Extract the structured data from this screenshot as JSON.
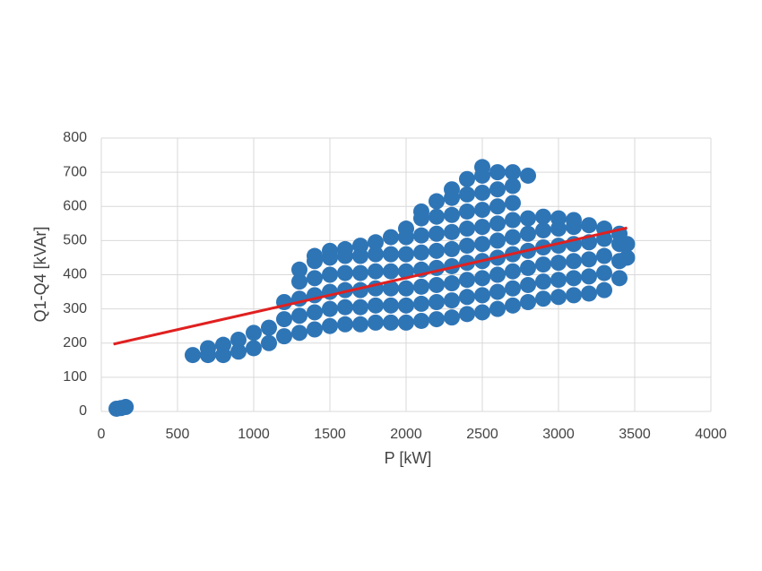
{
  "chart_data": {
    "type": "scatter",
    "xlabel": "P [kW]",
    "ylabel": "Q1-Q4 [kVAr]",
    "xlim": [
      0,
      4000
    ],
    "xticks": [
      0,
      500,
      1000,
      1500,
      2000,
      2500,
      3000,
      3500,
      4000
    ],
    "ylim": [
      0,
      800
    ],
    "yticks": [
      0,
      100,
      200,
      300,
      400,
      500,
      600,
      700,
      800
    ],
    "grid": true,
    "series": [
      {
        "mode": "markers",
        "color": "#2e75b6",
        "x": [
          600,
          700,
          700,
          800,
          800,
          900,
          900,
          1000,
          1000,
          1100,
          1100,
          1200,
          1200,
          1200,
          1300,
          1300,
          1300,
          1300,
          1300,
          1400,
          1400,
          1400,
          1400,
          1400,
          1400,
          1500,
          1500,
          1500,
          1500,
          1500,
          1500,
          1600,
          1600,
          1600,
          1600,
          1600,
          1600,
          1700,
          1700,
          1700,
          1700,
          1700,
          1700,
          1800,
          1800,
          1800,
          1800,
          1800,
          1800,
          1900,
          1900,
          1900,
          1900,
          1900,
          1900,
          2000,
          2000,
          2000,
          2000,
          2000,
          2000,
          2000,
          2100,
          2100,
          2100,
          2100,
          2100,
          2100,
          2100,
          2100,
          2200,
          2200,
          2200,
          2200,
          2200,
          2200,
          2200,
          2200,
          2300,
          2300,
          2300,
          2300,
          2300,
          2300,
          2300,
          2300,
          2300,
          2400,
          2400,
          2400,
          2400,
          2400,
          2400,
          2400,
          2400,
          2400,
          2500,
          2500,
          2500,
          2500,
          2500,
          2500,
          2500,
          2500,
          2500,
          2500,
          2600,
          2600,
          2600,
          2600,
          2600,
          2600,
          2600,
          2600,
          2600,
          2700,
          2700,
          2700,
          2700,
          2700,
          2700,
          2700,
          2700,
          2700,
          2800,
          2800,
          2800,
          2800,
          2800,
          2800,
          2800,
          2900,
          2900,
          2900,
          2900,
          2900,
          2900,
          3000,
          3000,
          3000,
          3000,
          3000,
          3000,
          3100,
          3100,
          3100,
          3100,
          3100,
          3100,
          3200,
          3200,
          3200,
          3200,
          3200,
          3300,
          3300,
          3300,
          3300,
          3300,
          3400,
          3400,
          3400,
          3400,
          3450,
          3450,
          100,
          130,
          160
        ],
        "values": [
          165,
          165,
          185,
          165,
          195,
          175,
          210,
          185,
          230,
          200,
          245,
          220,
          270,
          320,
          230,
          280,
          330,
          380,
          415,
          240,
          290,
          340,
          390,
          440,
          455,
          250,
          300,
          350,
          400,
          450,
          470,
          255,
          305,
          355,
          405,
          455,
          475,
          255,
          305,
          355,
          405,
          455,
          485,
          260,
          310,
          360,
          410,
          460,
          495,
          260,
          310,
          360,
          410,
          460,
          510,
          260,
          310,
          360,
          410,
          460,
          510,
          535,
          265,
          315,
          365,
          415,
          465,
          515,
          565,
          585,
          270,
          320,
          370,
          420,
          470,
          520,
          570,
          615,
          275,
          325,
          375,
          425,
          475,
          525,
          575,
          625,
          650,
          285,
          335,
          385,
          435,
          485,
          535,
          585,
          635,
          680,
          290,
          340,
          390,
          440,
          490,
          540,
          590,
          640,
          690,
          715,
          300,
          350,
          400,
          450,
          500,
          550,
          600,
          650,
          700,
          310,
          360,
          410,
          460,
          510,
          560,
          610,
          660,
          700,
          320,
          370,
          420,
          470,
          520,
          565,
          690,
          330,
          380,
          430,
          480,
          530,
          570,
          335,
          385,
          435,
          485,
          535,
          565,
          340,
          390,
          440,
          490,
          540,
          560,
          345,
          395,
          445,
          495,
          545,
          355,
          405,
          455,
          505,
          535,
          390,
          440,
          490,
          520,
          450,
          490,
          8,
          10,
          13
        ]
      },
      {
        "mode": "line",
        "color": "#e02020",
        "x": [
          80,
          3450
        ],
        "values": [
          197,
          537
        ]
      }
    ]
  }
}
